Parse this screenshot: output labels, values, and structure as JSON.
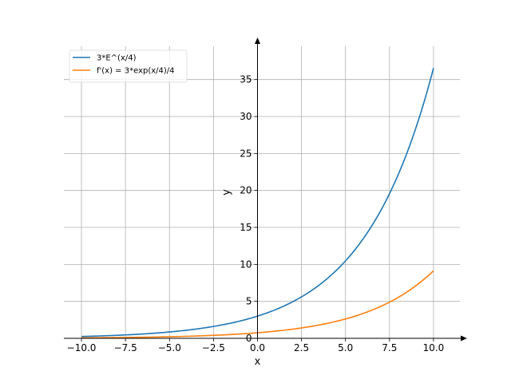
{
  "chart_data": {
    "type": "line",
    "xlabel": "x",
    "ylabel": "y",
    "xlim": [
      -11.0,
      11.5
    ],
    "ylim": [
      0,
      39.5
    ],
    "x_ticks": [
      -10.0,
      -7.5,
      -5.0,
      -2.5,
      0.0,
      2.5,
      5.0,
      7.5,
      10.0
    ],
    "x_tick_labels": [
      "−10.0",
      "−7.5",
      "−5.0",
      "−2.5",
      "0.0",
      "2.5",
      "5.0",
      "7.5",
      "10.0"
    ],
    "y_ticks": [
      0,
      5,
      10,
      15,
      20,
      25,
      30,
      35
    ],
    "y_tick_labels": [
      "0",
      "5",
      "10",
      "15",
      "20",
      "25",
      "30",
      "35"
    ],
    "grid": true,
    "legend": "top-left",
    "series": [
      {
        "name": "3*E^(x/4)",
        "color": "#1f77b4",
        "x": [
          -10,
          -9,
          -8,
          -7,
          -6,
          -5,
          -4,
          -3,
          -2,
          -1,
          0,
          1,
          2,
          3,
          4,
          5,
          6,
          7,
          8,
          9,
          10
        ],
        "y": [
          0.25,
          0.32,
          0.41,
          0.52,
          0.67,
          0.86,
          1.1,
          1.42,
          1.82,
          2.34,
          3.0,
          3.85,
          4.95,
          6.35,
          8.15,
          10.47,
          13.45,
          17.26,
          22.17,
          28.46,
          36.55
        ]
      },
      {
        "name": "f'(x) = 3*exp(x/4)/4",
        "color": "#ff7f0e",
        "x": [
          -10,
          -9,
          -8,
          -7,
          -6,
          -5,
          -4,
          -3,
          -2,
          -1,
          0,
          1,
          2,
          3,
          4,
          5,
          6,
          7,
          8,
          9,
          10
        ],
        "y": [
          0.06,
          0.08,
          0.1,
          0.13,
          0.17,
          0.21,
          0.28,
          0.35,
          0.45,
          0.58,
          0.75,
          0.96,
          1.24,
          1.59,
          2.04,
          2.62,
          3.36,
          4.31,
          5.54,
          7.12,
          9.14
        ]
      }
    ]
  }
}
